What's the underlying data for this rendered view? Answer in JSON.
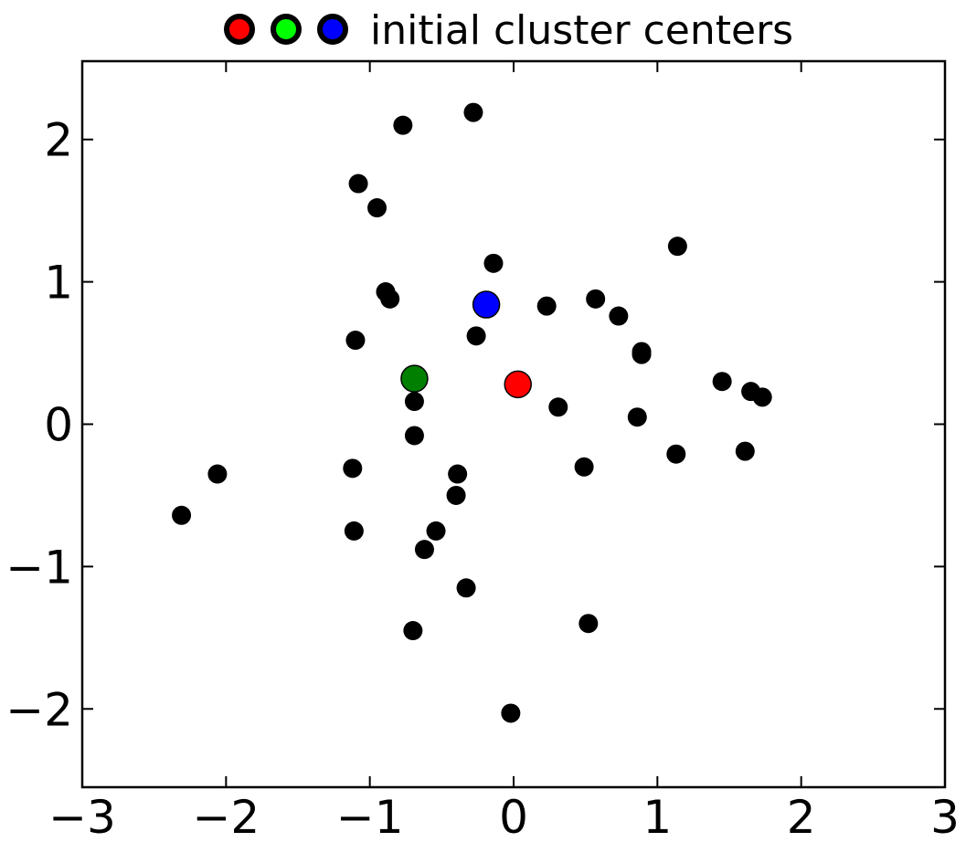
{
  "chart_data": {
    "type": "scatter",
    "title": "initial cluster centers",
    "xlim": [
      -3,
      3
    ],
    "ylim": [
      -2.55,
      2.55
    ],
    "x_ticks": [
      -3,
      -2,
      -1,
      0,
      1,
      2,
      3
    ],
    "y_ticks": [
      -2,
      -1,
      0,
      1,
      2
    ],
    "x_tick_labels": [
      "−3",
      "−2",
      "−1",
      "0",
      "1",
      "2",
      "3"
    ],
    "y_tick_labels": [
      "−2",
      "−1",
      "0",
      "1",
      "2"
    ],
    "grid": false,
    "legend_placement": "top-center",
    "legend_markers": [
      {
        "color": "#ff0000"
      },
      {
        "color": "#00ff00"
      },
      {
        "color": "#0000ff"
      }
    ],
    "series": [
      {
        "color": "#000000",
        "points": [
          [
            -0.77,
            2.1
          ],
          [
            -0.28,
            2.19
          ],
          [
            -1.08,
            1.69
          ],
          [
            -0.95,
            1.52
          ],
          [
            1.14,
            1.25
          ],
          [
            -0.14,
            1.13
          ],
          [
            -0.89,
            0.93
          ],
          [
            -0.86,
            0.88
          ],
          [
            0.57,
            0.88
          ],
          [
            0.23,
            0.83
          ],
          [
            0.73,
            0.76
          ],
          [
            -0.26,
            0.62
          ],
          [
            -1.1,
            0.59
          ],
          [
            0.89,
            0.51
          ],
          [
            0.89,
            0.49
          ],
          [
            1.45,
            0.3
          ],
          [
            1.65,
            0.23
          ],
          [
            1.73,
            0.19
          ],
          [
            -0.69,
            0.16
          ],
          [
            0.31,
            0.12
          ],
          [
            0.86,
            0.05
          ],
          [
            -0.69,
            -0.08
          ],
          [
            1.13,
            -0.21
          ],
          [
            1.61,
            -0.19
          ],
          [
            0.49,
            -0.3
          ],
          [
            -1.12,
            -0.31
          ],
          [
            -0.39,
            -0.35
          ],
          [
            -0.4,
            -0.5
          ],
          [
            -2.06,
            -0.35
          ],
          [
            -2.31,
            -0.64
          ],
          [
            -1.11,
            -0.75
          ],
          [
            -0.54,
            -0.75
          ],
          [
            -0.62,
            -0.88
          ],
          [
            -0.33,
            -1.15
          ],
          [
            0.52,
            -1.4
          ],
          [
            -0.7,
            -1.45
          ],
          [
            -0.02,
            -2.03
          ]
        ]
      },
      {
        "name": "initial cluster centers",
        "points": [
          {
            "x": 0.03,
            "y": 0.28,
            "color": "#ff0000"
          },
          {
            "x": -0.69,
            "y": 0.32,
            "color": "#007f00"
          },
          {
            "x": -0.19,
            "y": 0.84,
            "color": "#0000ff"
          }
        ]
      }
    ]
  }
}
